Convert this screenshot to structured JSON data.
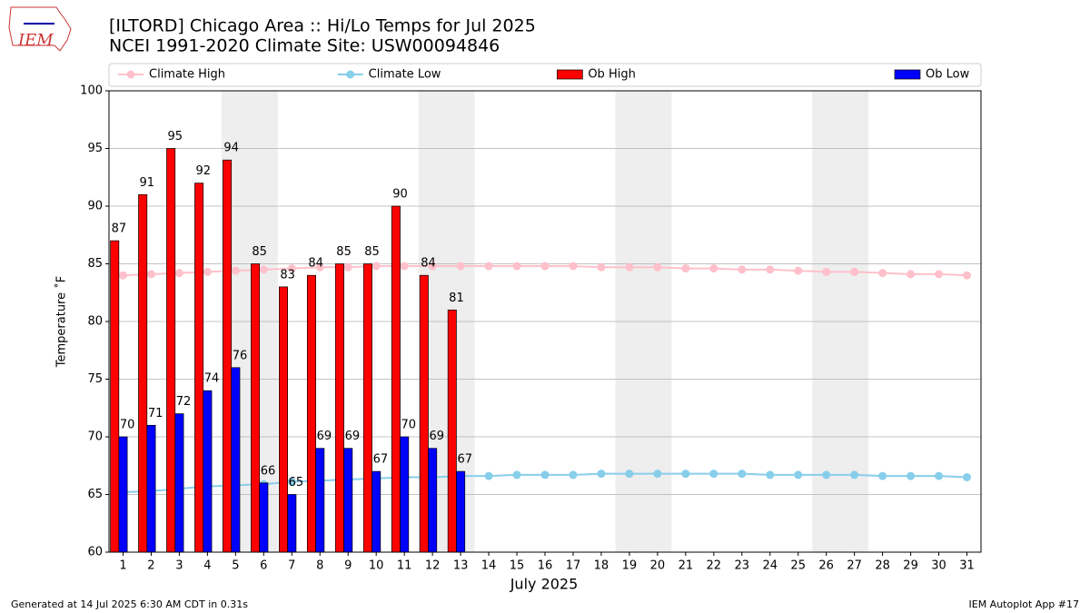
{
  "logo_text": "IEM",
  "footer_left": "Generated at 14 Jul 2025 6:30 AM CDT in 0.31s",
  "footer_right": "IEM Autoplot App #17",
  "chart_data": {
    "type": "bar",
    "title": "[ILTORD] Chicago Area :: Hi/Lo Temps for Jul 2025",
    "subtitle": "NCEI 1991-2020 Climate Site: USW00094846",
    "xlabel": "July 2025",
    "ylabel": "Temperature ˚F",
    "x": [
      1,
      2,
      3,
      4,
      5,
      6,
      7,
      8,
      9,
      10,
      11,
      12,
      13,
      14,
      15,
      16,
      17,
      18,
      19,
      20,
      21,
      22,
      23,
      24,
      25,
      26,
      27,
      28,
      29,
      30,
      31
    ],
    "xlim": [
      0.5,
      31.5
    ],
    "xticks": [
      1,
      2,
      3,
      4,
      5,
      6,
      7,
      8,
      9,
      10,
      11,
      12,
      13,
      14,
      15,
      16,
      17,
      18,
      19,
      20,
      21,
      22,
      23,
      24,
      25,
      26,
      27,
      28,
      29,
      30,
      31
    ],
    "ylim": [
      60,
      100
    ],
    "yticks": [
      60,
      65,
      70,
      75,
      80,
      85,
      90,
      95,
      100
    ],
    "grid": true,
    "legend_position": "top",
    "weekend_shading": [
      [
        4.5,
        6.5
      ],
      [
        11.5,
        13.5
      ],
      [
        18.5,
        20.5
      ],
      [
        25.5,
        27.5
      ]
    ],
    "shading_color": "#eeeeee",
    "series": [
      {
        "name": "Climate High",
        "type": "line",
        "color": "pink",
        "values": [
          84.0,
          84.1,
          84.2,
          84.3,
          84.4,
          84.5,
          84.6,
          84.7,
          84.7,
          84.8,
          84.8,
          84.8,
          84.8,
          84.8,
          84.8,
          84.8,
          84.8,
          84.7,
          84.7,
          84.7,
          84.6,
          84.6,
          84.5,
          84.5,
          84.4,
          84.3,
          84.3,
          84.2,
          84.1,
          84.1,
          84.0
        ]
      },
      {
        "name": "Climate Low",
        "type": "line",
        "color": "skyblue",
        "values": [
          65.2,
          65.3,
          65.5,
          65.7,
          65.8,
          65.9,
          66.1,
          66.2,
          66.3,
          66.4,
          66.5,
          66.5,
          66.6,
          66.6,
          66.7,
          66.7,
          66.7,
          66.8,
          66.8,
          66.8,
          66.8,
          66.8,
          66.8,
          66.7,
          66.7,
          66.7,
          66.7,
          66.6,
          66.6,
          66.6,
          66.5
        ]
      },
      {
        "name": "Ob High",
        "type": "bar",
        "color": "red",
        "values": [
          87,
          91,
          95,
          92,
          94,
          85,
          83,
          84,
          85,
          85,
          90,
          84,
          81,
          null,
          null,
          null,
          null,
          null,
          null,
          null,
          null,
          null,
          null,
          null,
          null,
          null,
          null,
          null,
          null,
          null,
          null
        ]
      },
      {
        "name": "Ob Low",
        "type": "bar",
        "color": "blue",
        "values": [
          70,
          71,
          72,
          74,
          76,
          66,
          65,
          69,
          69,
          67,
          70,
          69,
          67,
          null,
          null,
          null,
          null,
          null,
          null,
          null,
          null,
          null,
          null,
          null,
          null,
          null,
          null,
          null,
          null,
          null,
          null
        ]
      }
    ]
  }
}
